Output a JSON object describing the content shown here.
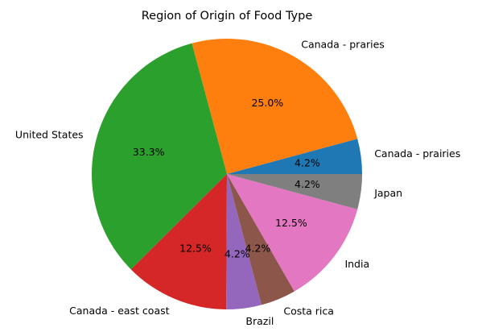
{
  "chart_data": {
    "type": "pie",
    "title": "Region of Origin of Food Type",
    "start_angle_deg": 0,
    "direction": "counterclockwise",
    "slices": [
      {
        "label": "Canada - prairies",
        "value": 4.2,
        "pct_label": "4.2%",
        "color": "#1f77b4"
      },
      {
        "label": "Canada - praries",
        "value": 25.0,
        "pct_label": "25.0%",
        "color": "#ff7f0e"
      },
      {
        "label": "United States",
        "value": 33.3,
        "pct_label": "33.3%",
        "color": "#2ca02c"
      },
      {
        "label": "Canada - east coast",
        "value": 12.5,
        "pct_label": "12.5%",
        "color": "#d62728"
      },
      {
        "label": "Brazil",
        "value": 4.2,
        "pct_label": "4.2%",
        "color": "#9467bd"
      },
      {
        "label": "Costa rica",
        "value": 4.2,
        "pct_label": "4.2%",
        "color": "#8c564b"
      },
      {
        "label": "India",
        "value": 12.5,
        "pct_label": "12.5%",
        "color": "#e377c2"
      },
      {
        "label": "Japan",
        "value": 4.2,
        "pct_label": "4.2%",
        "color": "#7f7f7f"
      }
    ]
  }
}
